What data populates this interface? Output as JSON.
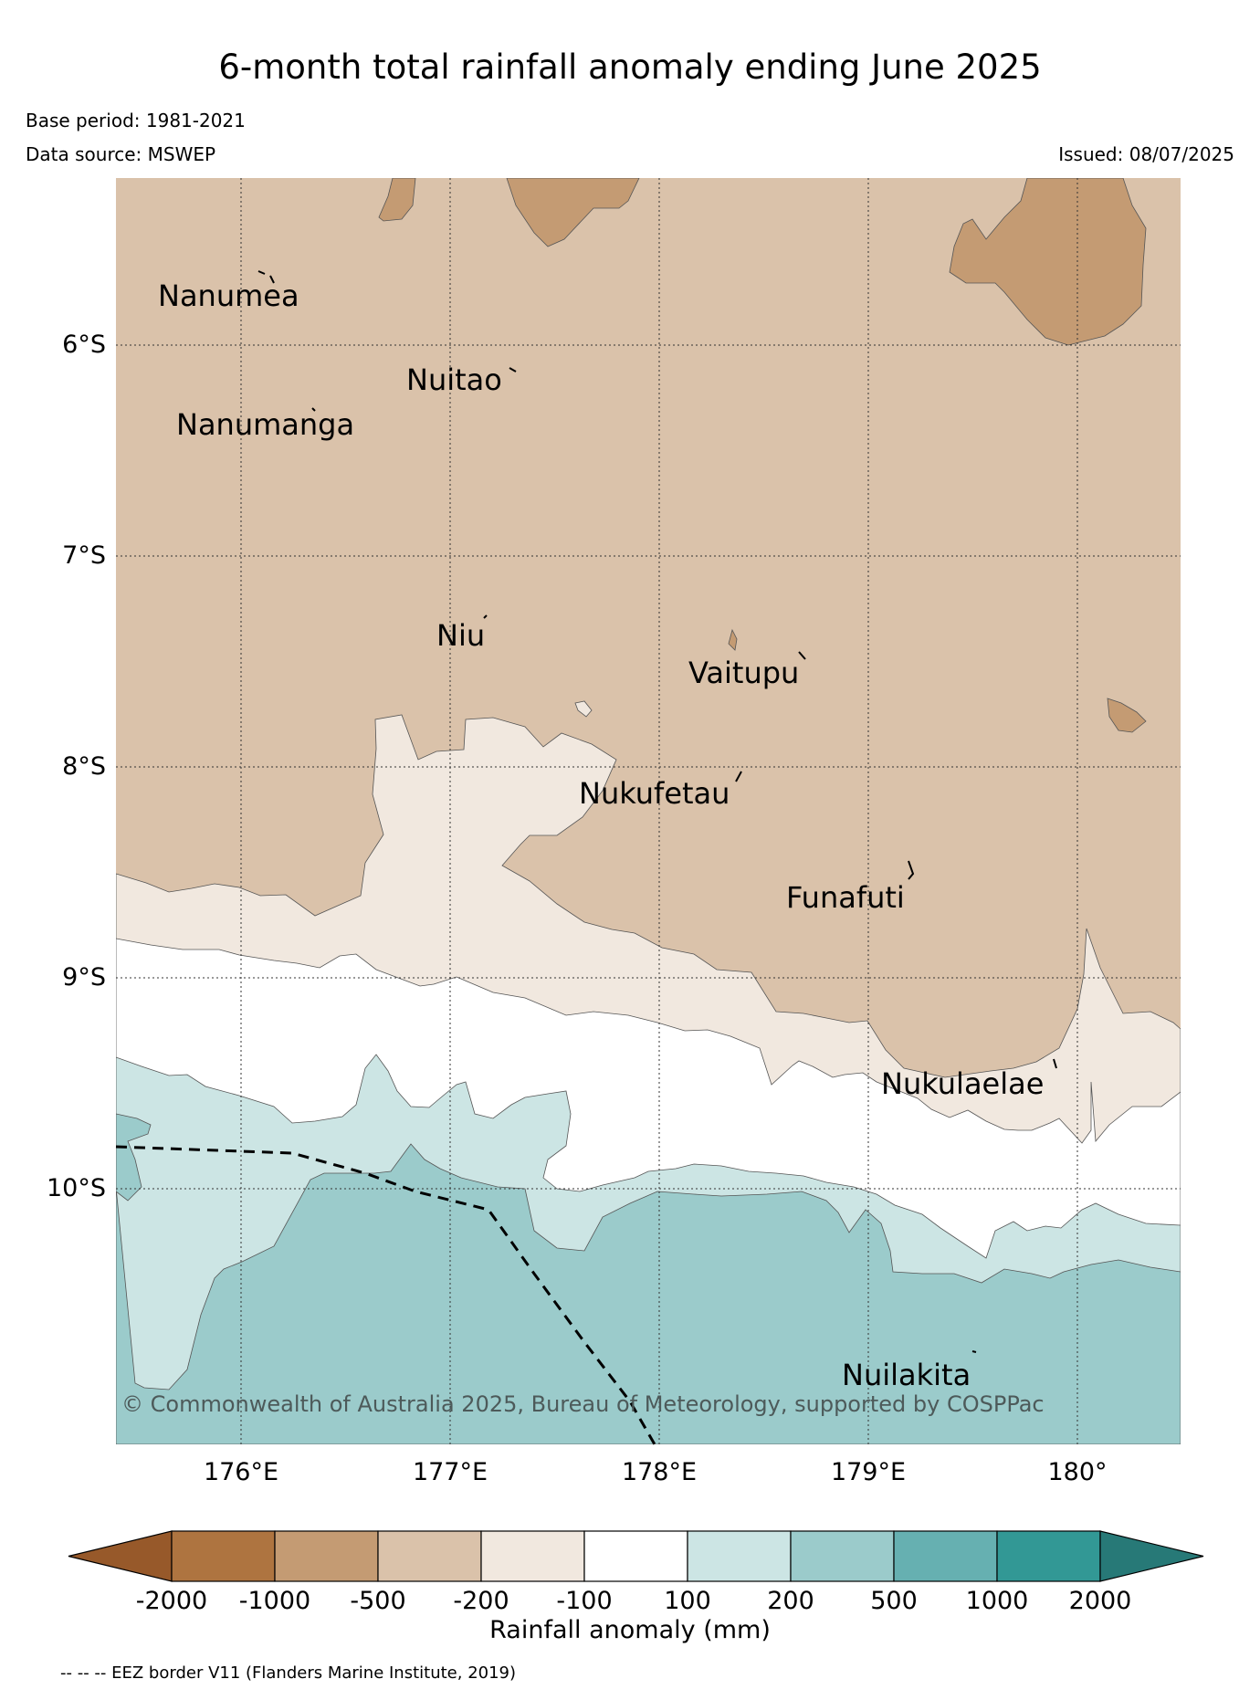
{
  "title": "6-month total rainfall anomaly ending June 2025",
  "base_period": "Base period: 1981-2021",
  "data_source": "Data source: MSWEP",
  "issued": "Issued: 08/07/2025",
  "latitude_labels": [
    "6°S",
    "7°S",
    "8°S",
    "9°S",
    "10°S"
  ],
  "longitude_labels": [
    "176°E",
    "177°E",
    "178°E",
    "179°E",
    "180°"
  ],
  "places": [
    "Nanumea",
    "Nuitao",
    "Nanumanga",
    "Niu",
    "Vaitupu",
    "Nukufetau",
    "Funafuti",
    "Nukulaelae",
    "Nuilakita"
  ],
  "copyright": "© Commonwealth of Australia 2025, Bureau of Meteorology, supported by COSPPac",
  "colorbar": {
    "label": "Rainfall anomaly (mm)",
    "ticks": [
      "-2000",
      "-1000",
      "-500",
      "-200",
      "-100",
      "100",
      "200",
      "500",
      "1000",
      "2000"
    ],
    "colors": [
      "#97592a",
      "#ae7440",
      "#c49b73",
      "#dac2aa",
      "#f1e8df",
      "#ffffff",
      "#cce5e4",
      "#9bcbcb",
      "#66b0b1",
      "#329895",
      "#277977"
    ]
  },
  "eez_note": "-- -- -- EEZ border V11 (Flanders Marine Institute, 2019)"
}
